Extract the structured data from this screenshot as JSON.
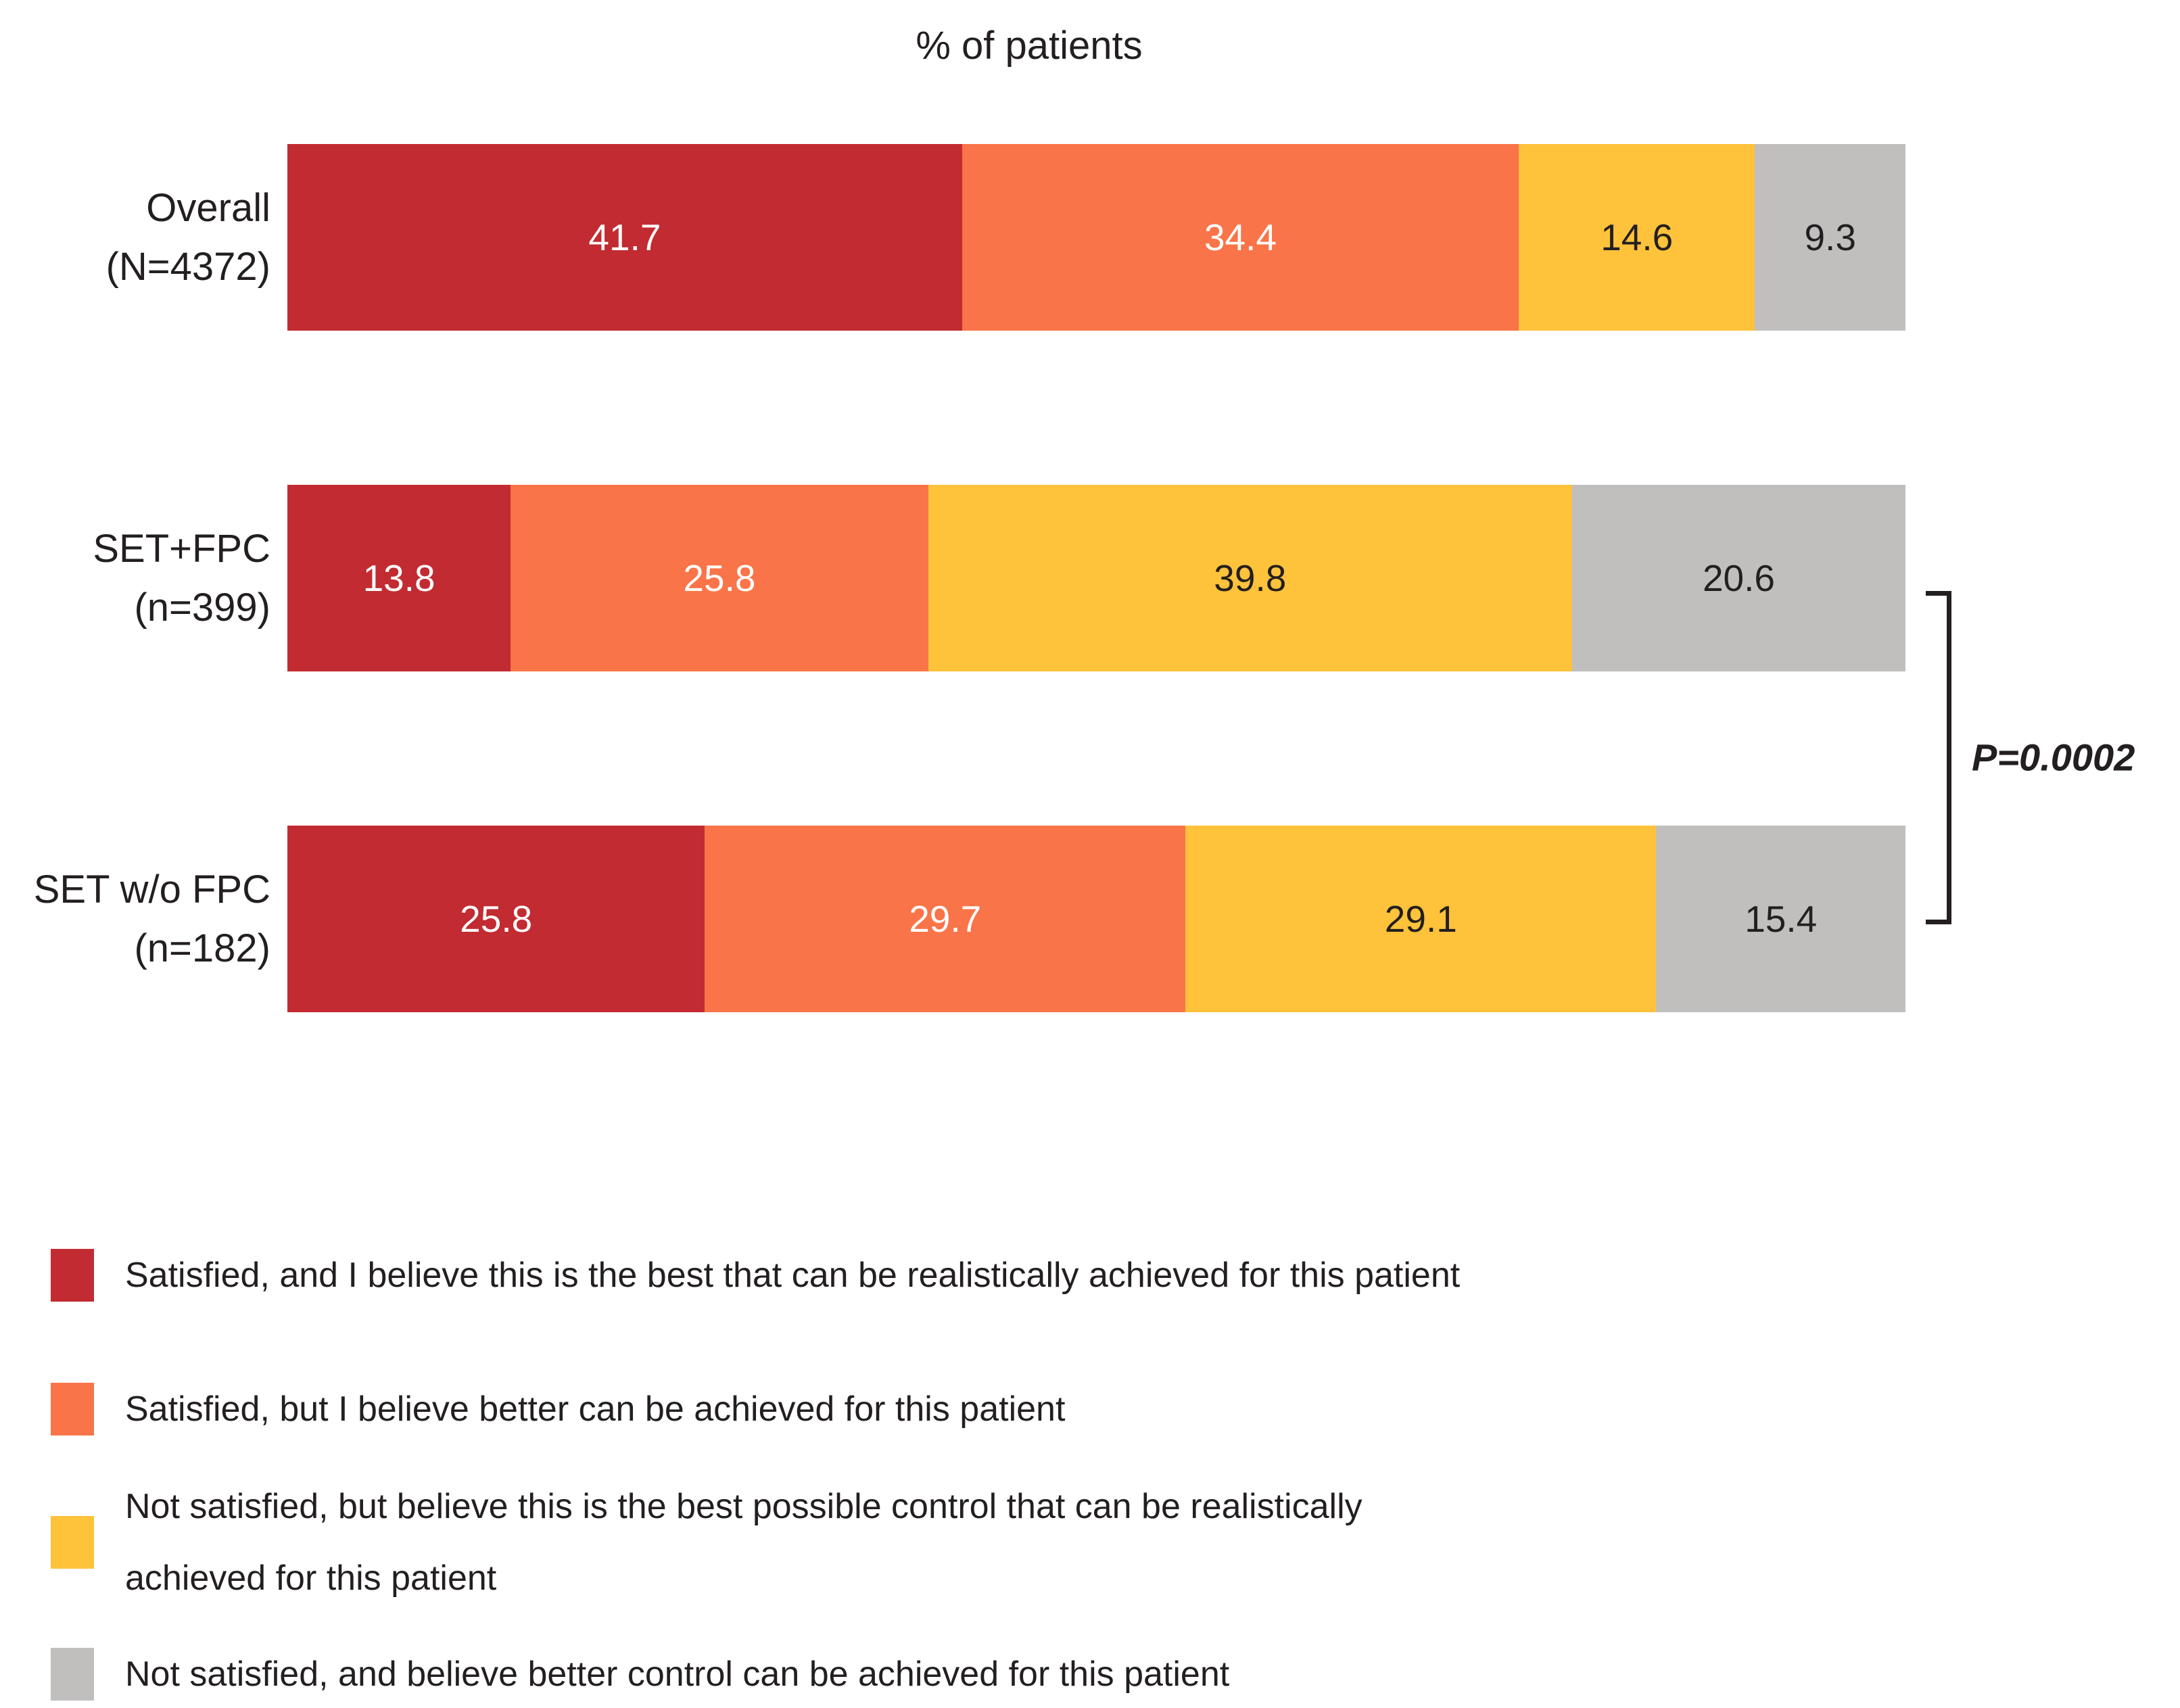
{
  "figure": {
    "title": "% of patients",
    "p_value_annotation": "P=0.0002"
  },
  "colors": {
    "deep_red": "#C22B31",
    "orange": "#F97448",
    "yellow": "#FEC23B",
    "gray": "#C1BEBE",
    "text": "#231F20"
  },
  "chart_data": {
    "type": "bar",
    "orientation": "horizontal",
    "stacked": true,
    "title": "% of patients",
    "xlabel": "",
    "ylabel": "",
    "xlim": [
      0,
      100
    ],
    "grid": false,
    "legend_position": "bottom",
    "value_format": "percent",
    "categories": [
      {
        "line1": "Overall",
        "line2": "(N=4372)"
      },
      {
        "line1": "SET+FPC",
        "line2": "(n=399)"
      },
      {
        "line1": "SET w/o FPC",
        "line2": "(n=182)"
      }
    ],
    "series": [
      {
        "name": "Satisfied, and I believe this is the best that can be realistically achieved for this patient",
        "legend_lines": [
          "Satisfied, and I believe this is the best that can be realistically achieved for this patient"
        ],
        "color": "#C22B31",
        "label_color": "#FFFFFF",
        "values": [
          41.7,
          13.8,
          25.8
        ]
      },
      {
        "name": "Satisfied, but I believe better can be achieved for this patient",
        "legend_lines": [
          "Satisfied, but I believe better can be achieved for this patient"
        ],
        "color": "#F97448",
        "label_color": "#FFFFFF",
        "values": [
          34.4,
          25.8,
          29.7
        ]
      },
      {
        "name": "Not satisfied, but believe this is the best possible control that can be realistically achieved for this patient",
        "legend_lines": [
          "Not satisfied, but believe this is the best possible control that can be realistically",
          "achieved for this patient"
        ],
        "color": "#FEC23B",
        "label_color": "#231F20",
        "values": [
          14.6,
          39.8,
          29.1
        ]
      },
      {
        "name": "Not satisfied, and believe better control can be achieved for this patient",
        "legend_lines": [
          "Not satisfied, and believe better control can be achieved for this patient"
        ],
        "color": "#C1BEBE",
        "label_color": "#231F20",
        "values": [
          9.3,
          20.6,
          15.4
        ]
      }
    ],
    "annotation": {
      "text": "P=0.0002",
      "between_categories": [
        "SET+FPC (n=399)",
        "SET w/o FPC (n=182)"
      ]
    }
  }
}
